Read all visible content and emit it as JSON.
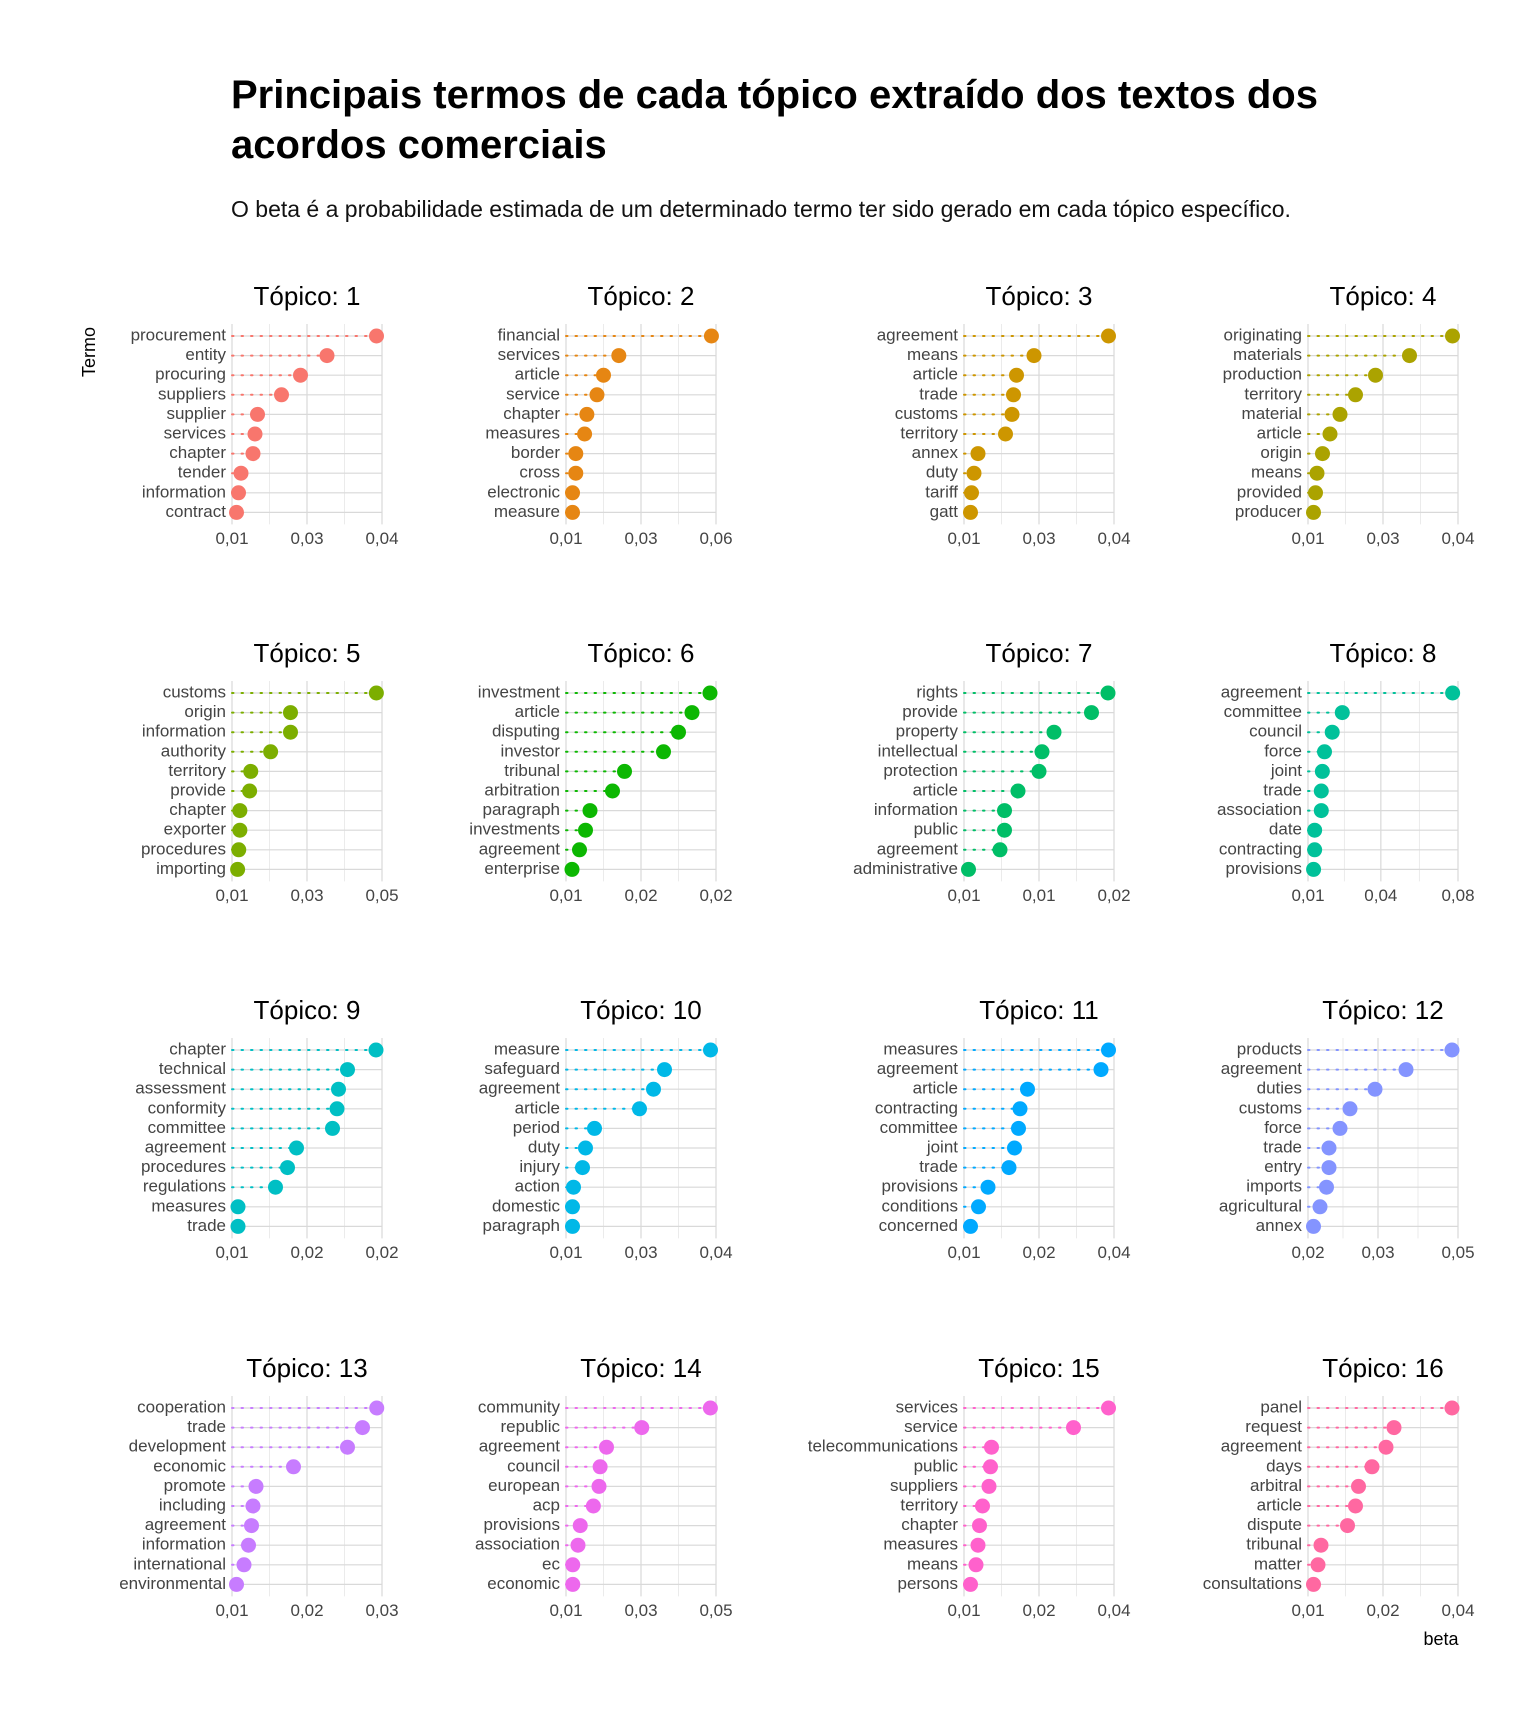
{
  "header": {
    "title": "Principais termos de cada tópico extraído dos textos dos acordos comerciais",
    "subtitle": "O beta é a probabilidade estimada de um determinado termo ter sido gerado em cada tópico específico."
  },
  "axes": {
    "y_label": "Termo",
    "x_label": "beta"
  },
  "chart_data": [
    {
      "type": "lollipop",
      "title": "Tópico: 1",
      "color": "#F8766D",
      "categories": [
        "procurement",
        "entity",
        "procuring",
        "suppliers",
        "supplier",
        "services",
        "chapter",
        "tender",
        "information",
        "contract"
      ],
      "values": [
        0.0389,
        0.029,
        0.0237,
        0.0199,
        0.0151,
        0.0146,
        0.0142,
        0.0118,
        0.0113,
        0.0109
      ],
      "xlim": [
        0.01,
        0.04
      ],
      "xticks": [
        {
          "value": 0.01,
          "label": "0,01"
        },
        {
          "value": 0.025,
          "label": "0,03"
        },
        {
          "value": 0.04,
          "label": "0,04"
        }
      ]
    },
    {
      "type": "lollipop",
      "title": "Tópico: 2",
      "color": "#E68613",
      "categories": [
        "financial",
        "services",
        "article",
        "service",
        "chapter",
        "measures",
        "border",
        "cross",
        "electronic",
        "measure"
      ],
      "values": [
        0.0546,
        0.0262,
        0.0215,
        0.0195,
        0.0164,
        0.0157,
        0.013,
        0.013,
        0.012,
        0.012
      ],
      "xlim": [
        0.01,
        0.056
      ],
      "xticks": [
        {
          "value": 0.01,
          "label": "0,01"
        },
        {
          "value": 0.033,
          "label": "0,03"
        },
        {
          "value": 0.056,
          "label": "0,06"
        }
      ]
    },
    {
      "type": "lollipop",
      "title": "Tópico: 3",
      "color": "#CD9600",
      "categories": [
        "agreement",
        "means",
        "article",
        "trade",
        "customs",
        "territory",
        "annex",
        "duty",
        "tariff",
        "gatt"
      ],
      "values": [
        0.0389,
        0.024,
        0.0205,
        0.0199,
        0.0196,
        0.0183,
        0.0128,
        0.012,
        0.0115,
        0.0113
      ],
      "xlim": [
        0.01,
        0.04
      ],
      "xticks": [
        {
          "value": 0.01,
          "label": "0,01"
        },
        {
          "value": 0.025,
          "label": "0,03"
        },
        {
          "value": 0.04,
          "label": "0,04"
        }
      ]
    },
    {
      "type": "lollipop",
      "title": "Tópico: 4",
      "color": "#ABA300",
      "categories": [
        "originating",
        "materials",
        "production",
        "territory",
        "material",
        "article",
        "origin",
        "means",
        "provided",
        "producer"
      ],
      "values": [
        0.0389,
        0.0303,
        0.0235,
        0.0195,
        0.0164,
        0.0144,
        0.0129,
        0.0118,
        0.0115,
        0.0111
      ],
      "xlim": [
        0.01,
        0.04
      ],
      "xticks": [
        {
          "value": 0.01,
          "label": "0,01"
        },
        {
          "value": 0.025,
          "label": "0,03"
        },
        {
          "value": 0.04,
          "label": "0,04"
        }
      ]
    },
    {
      "type": "lollipop",
      "title": "Tópico: 5",
      "color": "#7CAE00",
      "categories": [
        "customs",
        "origin",
        "information",
        "authority",
        "territory",
        "provide",
        "chapter",
        "exporter",
        "procedures",
        "importing"
      ],
      "values": [
        0.0485,
        0.0256,
        0.0256,
        0.0203,
        0.015,
        0.0147,
        0.0121,
        0.0121,
        0.0118,
        0.0115
      ],
      "xlim": [
        0.01,
        0.05
      ],
      "xticks": [
        {
          "value": 0.01,
          "label": "0,01"
        },
        {
          "value": 0.03,
          "label": "0,03"
        },
        {
          "value": 0.05,
          "label": "0,05"
        }
      ]
    },
    {
      "type": "lollipop",
      "title": "Tópico: 6",
      "color": "#0CB702",
      "categories": [
        "investment",
        "article",
        "disputing",
        "investor",
        "tribunal",
        "arbitration",
        "paragraph",
        "investments",
        "agreement",
        "enterprise"
      ],
      "values": [
        0.0196,
        0.0184,
        0.0175,
        0.0165,
        0.0139,
        0.0131,
        0.0116,
        0.0113,
        0.0109,
        0.0104
      ],
      "xlim": [
        0.01,
        0.02
      ],
      "xticks": [
        {
          "value": 0.01,
          "label": "0,01"
        },
        {
          "value": 0.015,
          "label": "0,02"
        },
        {
          "value": 0.02,
          "label": "0,02"
        }
      ]
    },
    {
      "type": "lollipop",
      "title": "Tópico: 7",
      "color": "#00BE67",
      "categories": [
        "rights",
        "provide",
        "property",
        "intellectual",
        "protection",
        "article",
        "information",
        "public",
        "agreement",
        "administrative"
      ],
      "values": [
        0.0171,
        0.016,
        0.0135,
        0.0127,
        0.0125,
        0.0111,
        0.0102,
        0.0102,
        0.0099,
        0.0078
      ],
      "xlim": [
        0.0075,
        0.0175
      ],
      "xticks": [
        {
          "value": 0.0075,
          "label": "0,01"
        },
        {
          "value": 0.0125,
          "label": "0,01"
        },
        {
          "value": 0.0175,
          "label": "0,02"
        }
      ]
    },
    {
      "type": "lollipop",
      "title": "Tópico: 8",
      "color": "#00C19A",
      "categories": [
        "agreement",
        "committee",
        "council",
        "force",
        "joint",
        "trade",
        "association",
        "date",
        "contracting",
        "provisions"
      ],
      "values": [
        0.0775,
        0.026,
        0.0213,
        0.0177,
        0.0167,
        0.0162,
        0.0162,
        0.0131,
        0.0131,
        0.0126
      ],
      "xlim": [
        0.01,
        0.08
      ],
      "xticks": [
        {
          "value": 0.01,
          "label": "0,01"
        },
        {
          "value": 0.044,
          "label": "0,04"
        },
        {
          "value": 0.08,
          "label": "0,08"
        }
      ]
    },
    {
      "type": "lollipop",
      "title": "Tópico: 9",
      "color": "#00BFC4",
      "categories": [
        "chapter",
        "technical",
        "assessment",
        "conformity",
        "committee",
        "agreement",
        "procedures",
        "regulations",
        "measures",
        "trade"
      ],
      "values": [
        0.0196,
        0.0177,
        0.0171,
        0.017,
        0.0167,
        0.0143,
        0.0137,
        0.0129,
        0.0104,
        0.0104
      ],
      "xlim": [
        0.01,
        0.02
      ],
      "xticks": [
        {
          "value": 0.01,
          "label": "0,01"
        },
        {
          "value": 0.015,
          "label": "0,02"
        },
        {
          "value": 0.02,
          "label": "0,02"
        }
      ]
    },
    {
      "type": "lollipop",
      "title": "Tópico: 10",
      "color": "#00B8E7",
      "categories": [
        "measure",
        "safeguard",
        "agreement",
        "article",
        "period",
        "duty",
        "injury",
        "action",
        "domestic",
        "paragraph"
      ],
      "values": [
        0.0389,
        0.0297,
        0.0275,
        0.0247,
        0.0157,
        0.0139,
        0.0133,
        0.0115,
        0.0113,
        0.0113
      ],
      "xlim": [
        0.01,
        0.04
      ],
      "xticks": [
        {
          "value": 0.01,
          "label": "0,01"
        },
        {
          "value": 0.025,
          "label": "0,03"
        },
        {
          "value": 0.04,
          "label": "0,04"
        }
      ]
    },
    {
      "type": "lollipop",
      "title": "Tópico: 11",
      "color": "#00A9FF",
      "categories": [
        "measures",
        "agreement",
        "article",
        "contracting",
        "committee",
        "joint",
        "trade",
        "provisions",
        "conditions",
        "concerned"
      ],
      "values": [
        0.0364,
        0.0349,
        0.0202,
        0.0187,
        0.0184,
        0.0176,
        0.0165,
        0.0123,
        0.0104,
        0.0088
      ],
      "xlim": [
        0.0075,
        0.0375
      ],
      "xticks": [
        {
          "value": 0.0075,
          "label": "0,01"
        },
        {
          "value": 0.0225,
          "label": "0,02"
        },
        {
          "value": 0.0375,
          "label": "0,04"
        }
      ]
    },
    {
      "type": "lollipop",
      "title": "Tópico: 12",
      "color": "#8494FF",
      "categories": [
        "products",
        "agreement",
        "duties",
        "customs",
        "force",
        "trade",
        "entry",
        "imports",
        "agricultural",
        "annex"
      ],
      "values": [
        0.0488,
        0.0396,
        0.0334,
        0.0284,
        0.0264,
        0.0242,
        0.0242,
        0.0237,
        0.0224,
        0.0211
      ],
      "xlim": [
        0.02,
        0.05
      ],
      "xticks": [
        {
          "value": 0.02,
          "label": "0,02"
        },
        {
          "value": 0.034,
          "label": "0,03"
        },
        {
          "value": 0.05,
          "label": "0,05"
        }
      ]
    },
    {
      "type": "lollipop",
      "title": "Tópico: 13",
      "color": "#C77CFF",
      "categories": [
        "cooperation",
        "trade",
        "development",
        "economic",
        "promote",
        "including",
        "agreement",
        "information",
        "international",
        "environmental"
      ],
      "values": [
        0.0293,
        0.0274,
        0.0254,
        0.0182,
        0.0132,
        0.0128,
        0.0126,
        0.0122,
        0.0116,
        0.0106
      ],
      "xlim": [
        0.01,
        0.03
      ],
      "xticks": [
        {
          "value": 0.01,
          "label": "0,01"
        },
        {
          "value": 0.02,
          "label": "0,02"
        },
        {
          "value": 0.03,
          "label": "0,03"
        }
      ]
    },
    {
      "type": "lollipop",
      "title": "Tópico: 14",
      "color": "#ED68ED",
      "categories": [
        "community",
        "republic",
        "agreement",
        "council",
        "european",
        "acp",
        "provisions",
        "association",
        "ec",
        "economic"
      ],
      "values": [
        0.0485,
        0.0302,
        0.0208,
        0.0191,
        0.0188,
        0.0173,
        0.0138,
        0.0132,
        0.0118,
        0.0118
      ],
      "xlim": [
        0.01,
        0.05
      ],
      "xticks": [
        {
          "value": 0.01,
          "label": "0,01"
        },
        {
          "value": 0.03,
          "label": "0,03"
        },
        {
          "value": 0.05,
          "label": "0,05"
        }
      ]
    },
    {
      "type": "lollipop",
      "title": "Tópico: 15",
      "color": "#FF61CC",
      "categories": [
        "services",
        "service",
        "telecommunications",
        "public",
        "suppliers",
        "territory",
        "chapter",
        "measures",
        "means",
        "persons"
      ],
      "values": [
        0.0364,
        0.0294,
        0.013,
        0.0128,
        0.0125,
        0.0112,
        0.0106,
        0.0103,
        0.0099,
        0.0088
      ],
      "xlim": [
        0.0075,
        0.0375
      ],
      "xticks": [
        {
          "value": 0.0075,
          "label": "0,01"
        },
        {
          "value": 0.0225,
          "label": "0,02"
        },
        {
          "value": 0.0375,
          "label": "0,04"
        }
      ]
    },
    {
      "type": "lollipop",
      "title": "Tópico: 16",
      "color": "#FF68A1",
      "categories": [
        "panel",
        "request",
        "agreement",
        "days",
        "arbitral",
        "article",
        "dispute",
        "tribunal",
        "matter",
        "consultations"
      ],
      "values": [
        0.0363,
        0.0247,
        0.0231,
        0.0203,
        0.0176,
        0.017,
        0.0154,
        0.0101,
        0.0095,
        0.0086
      ],
      "xlim": [
        0.0075,
        0.0375
      ],
      "xticks": [
        {
          "value": 0.0075,
          "label": "0,01"
        },
        {
          "value": 0.0225,
          "label": "0,02"
        },
        {
          "value": 0.0375,
          "label": "0,04"
        }
      ]
    }
  ]
}
